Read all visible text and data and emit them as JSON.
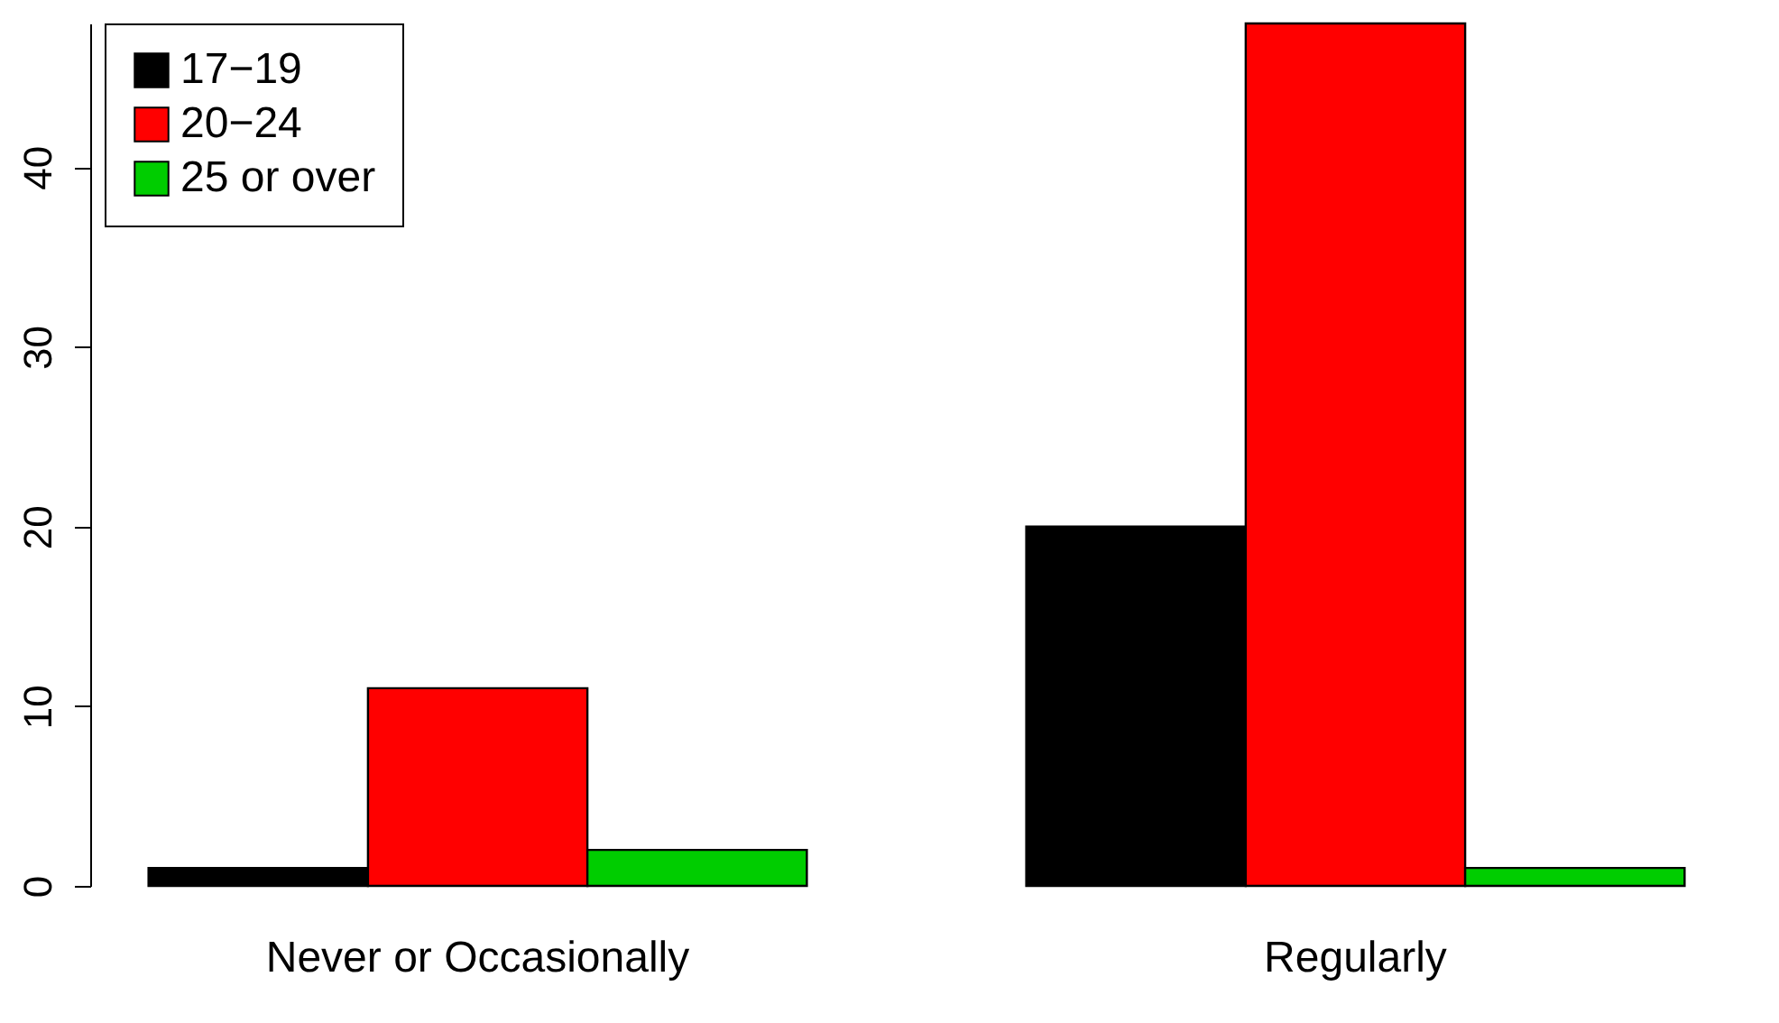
{
  "chart_data": {
    "type": "bar",
    "categories": [
      "Never or Occasionally",
      "Regularly"
    ],
    "series": [
      {
        "name": "17−19",
        "color": "#000000",
        "values": [
          1,
          20
        ]
      },
      {
        "name": "20−24",
        "color": "#ff0000",
        "values": [
          11,
          48
        ]
      },
      {
        "name": "25 or over",
        "color": "#00cd00",
        "values": [
          2,
          1
        ]
      }
    ],
    "ylim": [
      0,
      48
    ],
    "yticks": [
      0,
      10,
      20,
      30,
      40
    ],
    "grid": false,
    "legend": "top left"
  }
}
